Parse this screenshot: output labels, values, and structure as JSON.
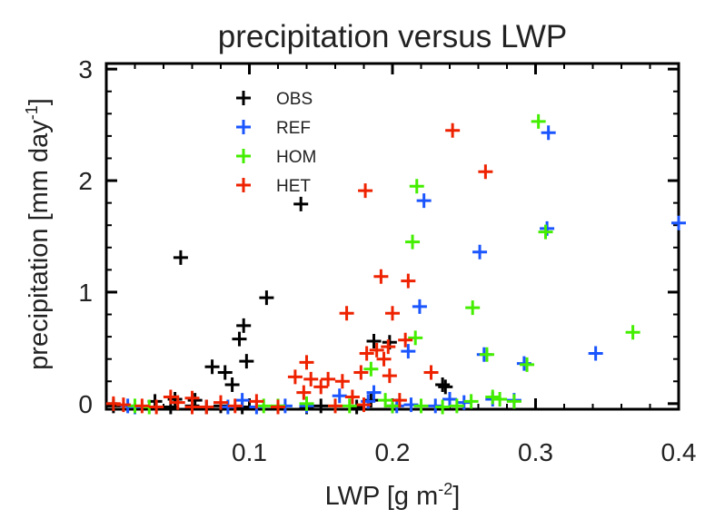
{
  "chart_data": {
    "type": "scatter",
    "title": "precipitation versus LWP",
    "xlabel": "LWP [g m",
    "xlabel_sup": "-2",
    "xlabel_close": "]",
    "ylabel": "precipitation [mm day",
    "ylabel_sup": "-1",
    "ylabel_close": "]",
    "xlim": [
      0.0,
      0.4
    ],
    "ylim": [
      -0.05,
      3.05
    ],
    "x_ticks": [
      0.1,
      0.2,
      0.3,
      0.4
    ],
    "x_tick_labels": [
      "0.1",
      "0.2",
      "0.3",
      "0.4"
    ],
    "y_ticks": [
      0,
      1,
      2,
      3
    ],
    "y_tick_labels": [
      "0",
      "1",
      "2",
      "3"
    ],
    "grid": false,
    "legend_position": "top-left",
    "marker": "plus",
    "series": [
      {
        "name": "OBS",
        "color": "#000000",
        "points": [
          [
            0.052,
            1.31
          ],
          [
            0.136,
            1.79
          ],
          [
            0.112,
            0.95
          ],
          [
            0.096,
            0.7
          ],
          [
            0.093,
            0.58
          ],
          [
            0.098,
            0.38
          ],
          [
            0.083,
            0.28
          ],
          [
            0.088,
            0.17
          ],
          [
            0.074,
            0.33
          ],
          [
            0.034,
            0.02
          ],
          [
            0.048,
            0.04
          ],
          [
            0.062,
            0.03
          ],
          [
            0.187,
            0.56
          ],
          [
            0.198,
            0.55
          ],
          [
            0.235,
            0.17
          ],
          [
            0.237,
            0.15
          ],
          [
            0.005,
            -0.02
          ],
          [
            0.02,
            -0.03
          ],
          [
            0.045,
            -0.03
          ],
          [
            0.06,
            -0.02
          ],
          [
            0.07,
            -0.03
          ],
          [
            0.08,
            -0.02
          ],
          [
            0.095,
            -0.03
          ],
          [
            0.14,
            -0.03
          ],
          [
            0.15,
            -0.02
          ],
          [
            0.175,
            -0.03
          ],
          [
            0.185,
            0.03
          ],
          [
            0.2,
            -0.02
          ]
        ]
      },
      {
        "name": "REF",
        "color": "#1a55ff",
        "points": [
          [
            0.309,
            2.43
          ],
          [
            0.222,
            1.82
          ],
          [
            0.308,
            1.57
          ],
          [
            0.4,
            1.62
          ],
          [
            0.261,
            1.36
          ],
          [
            0.219,
            0.87
          ],
          [
            0.342,
            0.45
          ],
          [
            0.264,
            0.44
          ],
          [
            0.211,
            0.47
          ],
          [
            0.292,
            0.36
          ],
          [
            0.285,
            0.03
          ],
          [
            0.27,
            0.04
          ],
          [
            0.25,
            0.01
          ],
          [
            0.24,
            0.04
          ],
          [
            0.187,
            0.1
          ],
          [
            0.163,
            0.07
          ],
          [
            0.183,
            0.02
          ],
          [
            0.203,
            -0.02
          ],
          [
            0.213,
            -0.01
          ],
          [
            0.23,
            -0.02
          ],
          [
            0.125,
            -0.02
          ],
          [
            0.105,
            -0.03
          ],
          [
            0.095,
            0.03
          ],
          [
            0.085,
            -0.03
          ],
          [
            0.02,
            -0.03
          ],
          [
            0.015,
            -0.02
          ],
          [
            0.14,
            -0.02
          ]
        ]
      },
      {
        "name": "HOM",
        "color": "#44ee00",
        "points": [
          [
            0.302,
            2.53
          ],
          [
            0.217,
            1.95
          ],
          [
            0.214,
            1.45
          ],
          [
            0.307,
            1.54
          ],
          [
            0.256,
            0.86
          ],
          [
            0.368,
            0.64
          ],
          [
            0.266,
            0.44
          ],
          [
            0.294,
            0.35
          ],
          [
            0.185,
            0.31
          ],
          [
            0.216,
            0.59
          ],
          [
            0.27,
            0.06
          ],
          [
            0.275,
            0.04
          ],
          [
            0.255,
            0.02
          ],
          [
            0.195,
            0.03
          ],
          [
            0.245,
            -0.02
          ],
          [
            0.22,
            -0.02
          ],
          [
            0.2,
            -0.02
          ],
          [
            0.17,
            -0.02
          ],
          [
            0.16,
            -0.02
          ],
          [
            0.14,
            0.0
          ],
          [
            0.12,
            -0.02
          ],
          [
            0.11,
            -0.02
          ],
          [
            0.02,
            -0.02
          ],
          [
            0.03,
            -0.03
          ],
          [
            0.285,
            0.02
          ],
          [
            0.235,
            -0.03
          ]
        ]
      },
      {
        "name": "HET",
        "color": "#ee2200",
        "points": [
          [
            0.242,
            2.45
          ],
          [
            0.265,
            2.08
          ],
          [
            0.181,
            1.91
          ],
          [
            0.192,
            1.14
          ],
          [
            0.211,
            1.1
          ],
          [
            0.168,
            0.81
          ],
          [
            0.2,
            0.81
          ],
          [
            0.209,
            0.57
          ],
          [
            0.197,
            0.51
          ],
          [
            0.189,
            0.48
          ],
          [
            0.182,
            0.45
          ],
          [
            0.178,
            0.28
          ],
          [
            0.194,
            0.4
          ],
          [
            0.198,
            0.25
          ],
          [
            0.227,
            0.28
          ],
          [
            0.14,
            0.37
          ],
          [
            0.132,
            0.24
          ],
          [
            0.143,
            0.22
          ],
          [
            0.15,
            0.15
          ],
          [
            0.155,
            0.22
          ],
          [
            0.138,
            0.1
          ],
          [
            0.165,
            0.2
          ],
          [
            0.172,
            0.06
          ],
          [
            0.205,
            0.03
          ],
          [
            0.105,
            0.02
          ],
          [
            0.08,
            0.01
          ],
          [
            0.06,
            0.05
          ],
          [
            0.045,
            0.06
          ],
          [
            0.05,
            0.01
          ],
          [
            0.012,
            -0.01
          ],
          [
            0.025,
            -0.02
          ],
          [
            0.035,
            -0.03
          ],
          [
            0.06,
            -0.03
          ],
          [
            0.07,
            -0.03
          ],
          [
            0.09,
            -0.02
          ],
          [
            0.12,
            -0.03
          ],
          [
            0.16,
            -0.02
          ],
          [
            0.18,
            -0.01
          ],
          [
            0.005,
            0.0
          ]
        ]
      }
    ]
  }
}
